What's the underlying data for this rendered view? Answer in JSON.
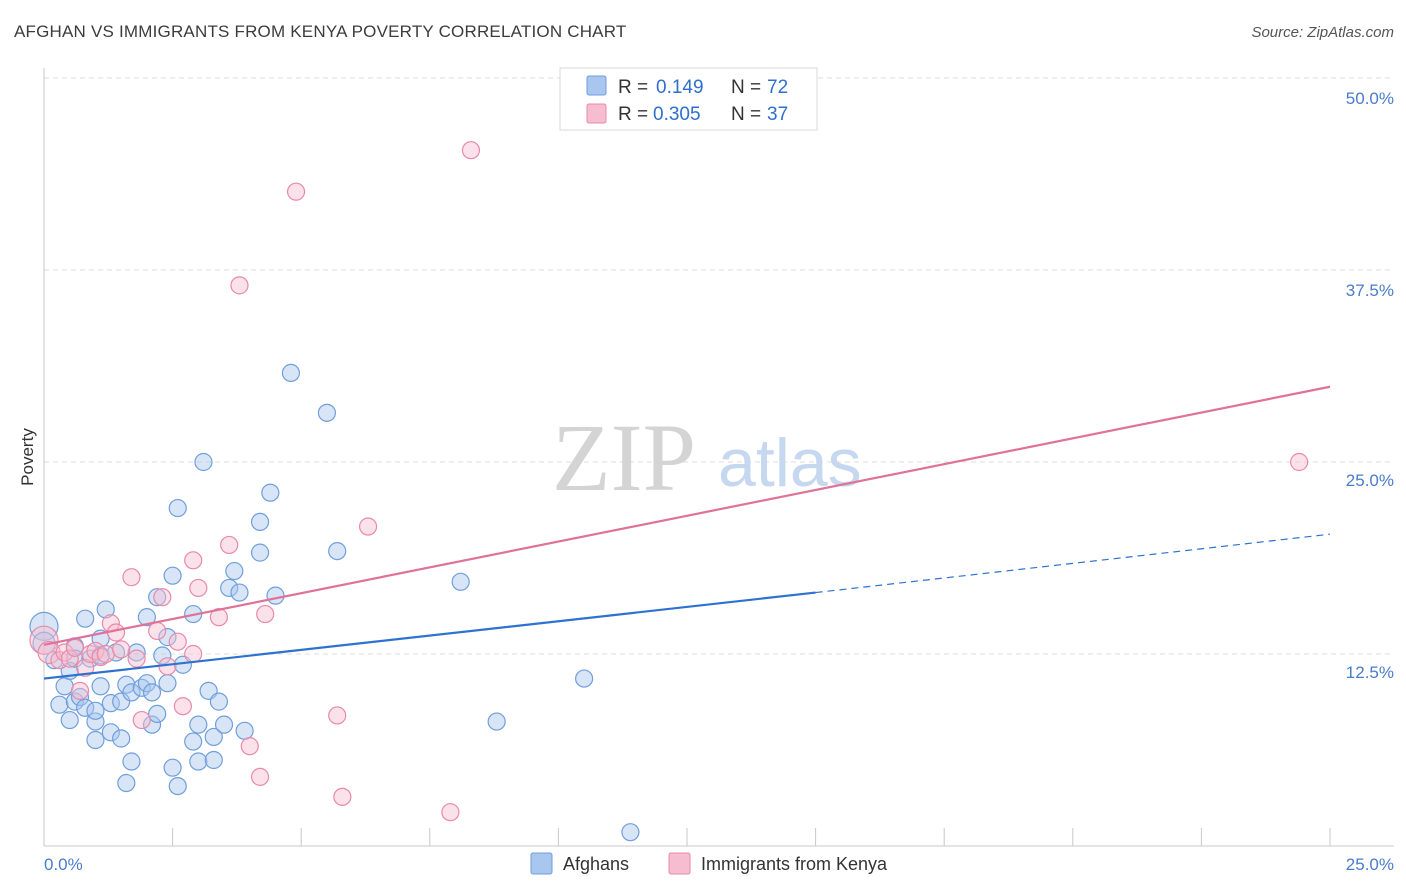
{
  "header": {
    "title": "AFGHAN VS IMMIGRANTS FROM KENYA POVERTY CORRELATION CHART",
    "source": "Source: ZipAtlas.com"
  },
  "watermark": {
    "zip": "ZIP",
    "atlas": "atlas"
  },
  "colors": {
    "blue_fill": "#a9c6ee",
    "blue_stroke": "#6f9fdc",
    "blue_line": "#2e72cf",
    "pink_fill": "#f6bdd0",
    "pink_stroke": "#e88aa8",
    "pink_line": "#e0729a",
    "grid": "#dcdcdc",
    "tick_label": "#4a7cc9"
  },
  "chart_data": {
    "type": "scatter",
    "title": "AFGHAN VS IMMIGRANTS FROM KENYA POVERTY CORRELATION CHART",
    "xlabel": "",
    "ylabel": "Poverty",
    "xlim": [
      0,
      25
    ],
    "ylim": [
      0,
      50
    ],
    "x_tick_labels": [
      "0.0%",
      "25.0%"
    ],
    "y_ticks": [
      12.5,
      25.0,
      37.5,
      50.0
    ],
    "y_tick_labels": [
      "12.5%",
      "25.0%",
      "37.5%",
      "50.0%"
    ],
    "grid": true,
    "legend": {
      "placement": "top-center",
      "entries": [
        {
          "name": "Afghans",
          "r_label": "R = ",
          "r": "0.149",
          "n_label": "N = ",
          "n": "72"
        },
        {
          "name": "Immigrants from Kenya",
          "r_label": "R = ",
          "r": "0.305",
          "n_label": "N = ",
          "n": "37"
        }
      ]
    },
    "series": [
      {
        "name": "Afghans",
        "color": "blue",
        "trend": {
          "x0": 0,
          "y0": 10.9,
          "x1": 15,
          "y1": 16.5,
          "dash_to_x": 25,
          "dash_to_y": 20.3
        },
        "points": [
          [
            0.0,
            14.3,
            3
          ],
          [
            0.0,
            13.2,
            2
          ],
          [
            0.2,
            12.1,
            1
          ],
          [
            0.3,
            9.2,
            1
          ],
          [
            0.4,
            10.4,
            1
          ],
          [
            0.5,
            11.4,
            1
          ],
          [
            0.6,
            13.0,
            1
          ],
          [
            0.6,
            12.2,
            1
          ],
          [
            0.5,
            8.2,
            1
          ],
          [
            0.6,
            9.4,
            1
          ],
          [
            0.7,
            9.7,
            1
          ],
          [
            0.8,
            9.0,
            1
          ],
          [
            0.8,
            14.8,
            1
          ],
          [
            0.9,
            12.2,
            1
          ],
          [
            1.0,
            8.1,
            1
          ],
          [
            1.0,
            8.8,
            1
          ],
          [
            1.0,
            6.9,
            1
          ],
          [
            1.1,
            12.4,
            1
          ],
          [
            1.1,
            13.5,
            1
          ],
          [
            1.1,
            10.4,
            1
          ],
          [
            1.2,
            15.4,
            1
          ],
          [
            1.3,
            7.4,
            1
          ],
          [
            1.3,
            9.3,
            1
          ],
          [
            1.4,
            12.6,
            1
          ],
          [
            1.5,
            7.0,
            1
          ],
          [
            1.5,
            9.4,
            1
          ],
          [
            1.6,
            10.5,
            1
          ],
          [
            1.6,
            4.1,
            1
          ],
          [
            1.7,
            10.0,
            1
          ],
          [
            1.7,
            5.5,
            1
          ],
          [
            1.8,
            12.6,
            1
          ],
          [
            1.9,
            10.3,
            1
          ],
          [
            2.0,
            10.6,
            1
          ],
          [
            2.0,
            14.9,
            1
          ],
          [
            2.1,
            10.0,
            1
          ],
          [
            2.1,
            7.9,
            1
          ],
          [
            2.2,
            8.6,
            1
          ],
          [
            2.2,
            16.2,
            1
          ],
          [
            2.3,
            12.4,
            1
          ],
          [
            2.4,
            10.6,
            1
          ],
          [
            2.4,
            13.6,
            1
          ],
          [
            2.5,
            17.6,
            1
          ],
          [
            2.6,
            22.0,
            1
          ],
          [
            2.5,
            5.1,
            1
          ],
          [
            2.6,
            3.9,
            1
          ],
          [
            2.7,
            11.8,
            1
          ],
          [
            2.9,
            6.8,
            1
          ],
          [
            2.9,
            15.1,
            1
          ],
          [
            3.0,
            7.9,
            1
          ],
          [
            3.0,
            5.5,
            1
          ],
          [
            3.1,
            25.0,
            1
          ],
          [
            3.2,
            10.1,
            1
          ],
          [
            3.3,
            5.6,
            1
          ],
          [
            3.3,
            7.1,
            1
          ],
          [
            3.4,
            9.4,
            1
          ],
          [
            3.5,
            7.9,
            1
          ],
          [
            3.6,
            16.8,
            1
          ],
          [
            3.7,
            17.9,
            1
          ],
          [
            3.8,
            16.5,
            1
          ],
          [
            3.9,
            7.5,
            1
          ],
          [
            4.2,
            21.1,
            1
          ],
          [
            4.2,
            19.1,
            1
          ],
          [
            4.4,
            23.0,
            1
          ],
          [
            4.5,
            16.3,
            1
          ],
          [
            4.8,
            30.8,
            1
          ],
          [
            5.5,
            28.2,
            1
          ],
          [
            5.7,
            19.2,
            1
          ],
          [
            8.1,
            17.2,
            1
          ],
          [
            8.8,
            8.1,
            1
          ],
          [
            10.5,
            10.9,
            1
          ],
          [
            11.4,
            0.9,
            1
          ]
        ]
      },
      {
        "name": "Immigrants from Kenya",
        "color": "pink",
        "trend": {
          "x0": 0,
          "y0": 13.1,
          "x1": 25,
          "y1": 29.9
        },
        "points": [
          [
            0.0,
            13.4,
            3
          ],
          [
            0.1,
            12.6,
            2
          ],
          [
            0.3,
            12.1,
            1
          ],
          [
            0.4,
            12.6,
            1
          ],
          [
            0.5,
            12.2,
            1
          ],
          [
            0.6,
            12.9,
            1
          ],
          [
            0.7,
            10.1,
            1
          ],
          [
            0.8,
            11.6,
            1
          ],
          [
            0.9,
            12.5,
            1
          ],
          [
            1.0,
            12.7,
            1
          ],
          [
            1.1,
            12.3,
            1
          ],
          [
            1.2,
            12.5,
            1
          ],
          [
            1.3,
            14.5,
            1
          ],
          [
            1.4,
            13.9,
            1
          ],
          [
            1.5,
            12.8,
            1
          ],
          [
            1.7,
            17.5,
            1
          ],
          [
            1.8,
            12.2,
            1
          ],
          [
            1.9,
            8.2,
            1
          ],
          [
            2.2,
            14.0,
            1
          ],
          [
            2.3,
            16.2,
            1
          ],
          [
            2.4,
            11.7,
            1
          ],
          [
            2.6,
            13.3,
            1
          ],
          [
            2.7,
            9.1,
            1
          ],
          [
            2.9,
            12.5,
            1
          ],
          [
            2.9,
            18.6,
            1
          ],
          [
            3.0,
            16.8,
            1
          ],
          [
            3.4,
            14.9,
            1
          ],
          [
            3.6,
            19.6,
            1
          ],
          [
            3.8,
            36.5,
            1
          ],
          [
            4.0,
            6.5,
            1
          ],
          [
            4.2,
            4.5,
            1
          ],
          [
            4.3,
            15.1,
            1
          ],
          [
            4.9,
            42.6,
            1
          ],
          [
            5.7,
            8.5,
            1
          ],
          [
            5.8,
            3.2,
            1
          ],
          [
            6.3,
            20.8,
            1
          ],
          [
            7.9,
            2.2,
            1
          ],
          [
            8.3,
            45.3,
            1
          ],
          [
            24.4,
            25.0,
            1
          ]
        ]
      }
    ]
  }
}
